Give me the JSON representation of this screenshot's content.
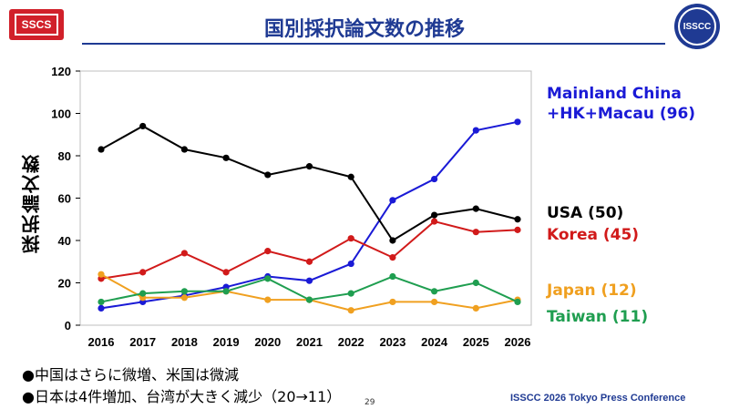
{
  "header": {
    "title": "国別採択論文数の推移",
    "logo_left_text": "SSCS",
    "logo_right_text": "ISSCC"
  },
  "chart_data": {
    "type": "line",
    "ylabel": "採択論文数",
    "ylim": [
      0,
      120
    ],
    "yticks": [
      0,
      20,
      40,
      60,
      80,
      100,
      120
    ],
    "x": [
      "2016",
      "2017",
      "2018",
      "2019",
      "2020",
      "2021",
      "2022",
      "2023",
      "2024",
      "2025",
      "2026"
    ],
    "series": [
      {
        "name": "Mainland China +HK+Macau (96)",
        "color": "#1a1ad6",
        "values": [
          8,
          11,
          14,
          18,
          23,
          21,
          29,
          59,
          69,
          92,
          96
        ]
      },
      {
        "name": "USA (50)",
        "color": "#000000",
        "values": [
          83,
          94,
          83,
          79,
          71,
          75,
          70,
          40,
          52,
          55,
          50
        ]
      },
      {
        "name": "Korea (45)",
        "color": "#d11a1a",
        "values": [
          22,
          25,
          34,
          25,
          35,
          30,
          41,
          32,
          49,
          44,
          45
        ]
      },
      {
        "name": "Japan (12)",
        "color": "#f0a020",
        "values": [
          24,
          13,
          13,
          16,
          12,
          12,
          7,
          11,
          11,
          8,
          12
        ]
      },
      {
        "name": "Taiwan (11)",
        "color": "#1f9e50",
        "values": [
          11,
          15,
          16,
          16,
          22,
          12,
          15,
          23,
          16,
          20,
          11
        ]
      }
    ],
    "grid": false,
    "legend": "right"
  },
  "legend": {
    "china": "Mainland China +HK+Macau (96)",
    "usa": "USA (50)",
    "korea": "Korea (45)",
    "japan": "Japan (12)",
    "taiwan": "Taiwan (11)"
  },
  "bullets": [
    "●中国はさらに微増、米国は微減",
    "●日本は4件増加、台湾が大きく減少（20→11）"
  ],
  "footer": {
    "page": "29",
    "conference": "ISSCC 2026 Tokyo Press Conference"
  }
}
